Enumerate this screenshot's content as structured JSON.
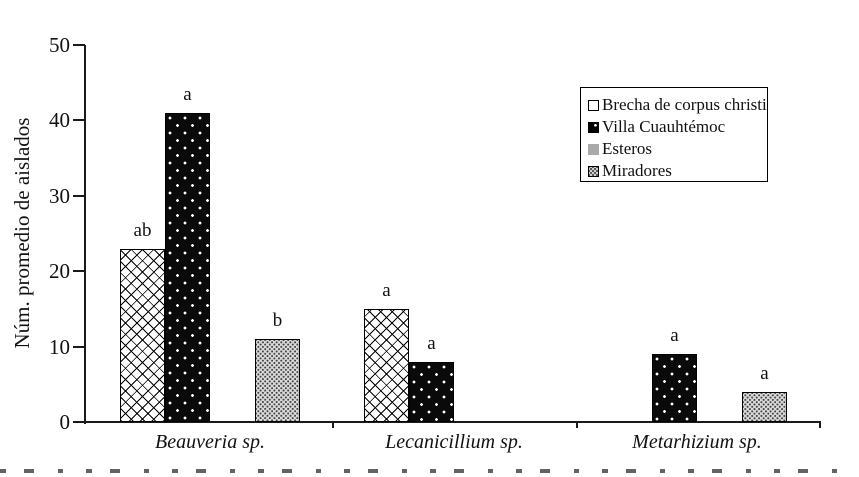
{
  "figure": {
    "y_axis_label": "Núm. promedio de aislados"
  },
  "legend": {
    "items": [
      {
        "label": "Brecha de corpus christi",
        "marker": "open-square"
      },
      {
        "label": "Villa Cuauhtémoc",
        "marker": "black-dotted-square"
      },
      {
        "label": "Esteros",
        "marker": "gray-square"
      },
      {
        "label": "Miradores",
        "marker": "gray-dotted-square"
      }
    ]
  },
  "chart_data": {
    "type": "bar",
    "title": "",
    "xlabel": "",
    "ylabel": "Núm. promedio de aislados",
    "ylim": [
      0,
      50
    ],
    "yticks": [
      0,
      10,
      20,
      30,
      40,
      50
    ],
    "grid": false,
    "legend_position": "upper right",
    "categories": [
      "Beauveria sp.",
      "Lecanicillium sp.",
      "Metarhizium sp."
    ],
    "series": [
      {
        "name": "Brecha de corpus christi",
        "pattern": "crosshatch-white",
        "values": [
          23,
          15,
          null
        ]
      },
      {
        "name": "Villa Cuauhtémoc",
        "pattern": "black-white-dots",
        "values": [
          41,
          8,
          9
        ]
      },
      {
        "name": "Esteros",
        "pattern": "solid-gray",
        "values": [
          null,
          null,
          null
        ]
      },
      {
        "name": "Miradores",
        "pattern": "gray-fine-dots",
        "values": [
          11,
          null,
          4
        ]
      }
    ],
    "significance_labels": [
      [
        "ab",
        "a",
        null,
        "b"
      ],
      [
        "a",
        "a",
        null,
        null
      ],
      [
        null,
        "a",
        null,
        "a"
      ]
    ]
  }
}
